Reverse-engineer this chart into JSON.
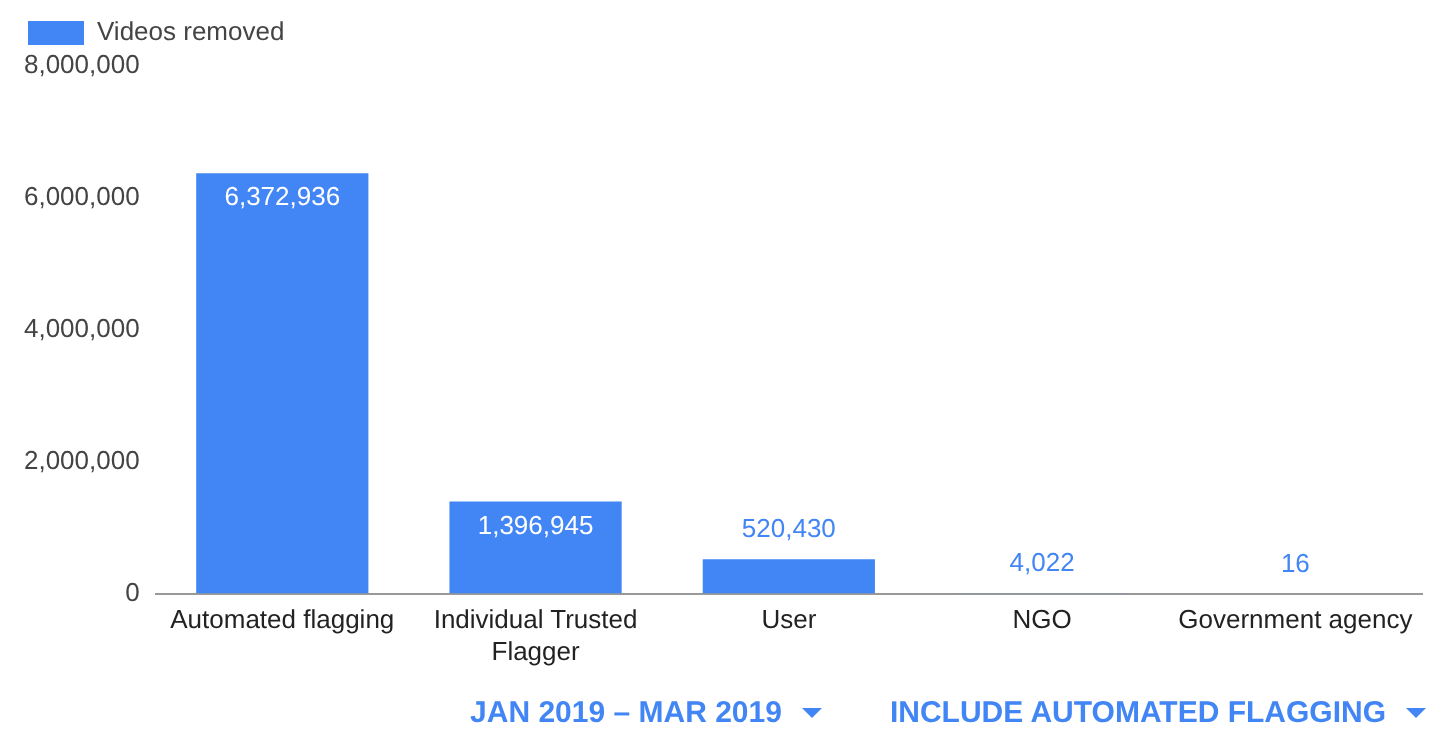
{
  "chart_data": {
    "type": "bar",
    "categories": [
      "Automated flagging",
      "Individual Trusted Flagger",
      "User",
      "NGO",
      "Government agency"
    ],
    "series": [
      {
        "name": "Videos removed",
        "color": "#4285f4",
        "values": [
          6372936,
          1396945,
          520430,
          4022,
          16
        ],
        "value_labels": [
          "6,372,936",
          "1,396,945",
          "520,430",
          "4,022",
          "16"
        ]
      }
    ],
    "ylim": [
      0,
      8000000
    ],
    "yticks": [
      0,
      {
        "value": 2000000,
        "label": "2,000,000"
      },
      {
        "value": 4000000,
        "label": "4,000,000"
      },
      {
        "value": 6000000,
        "label": "6,000,000"
      },
      {
        "value": 8000000,
        "label": "8,000,000"
      }
    ],
    "grid": false,
    "legend": "top left",
    "annotations": [
      "JAN 2019 – MAR 2019",
      "INCLUDE AUTOMATED FLAGGING"
    ]
  }
}
